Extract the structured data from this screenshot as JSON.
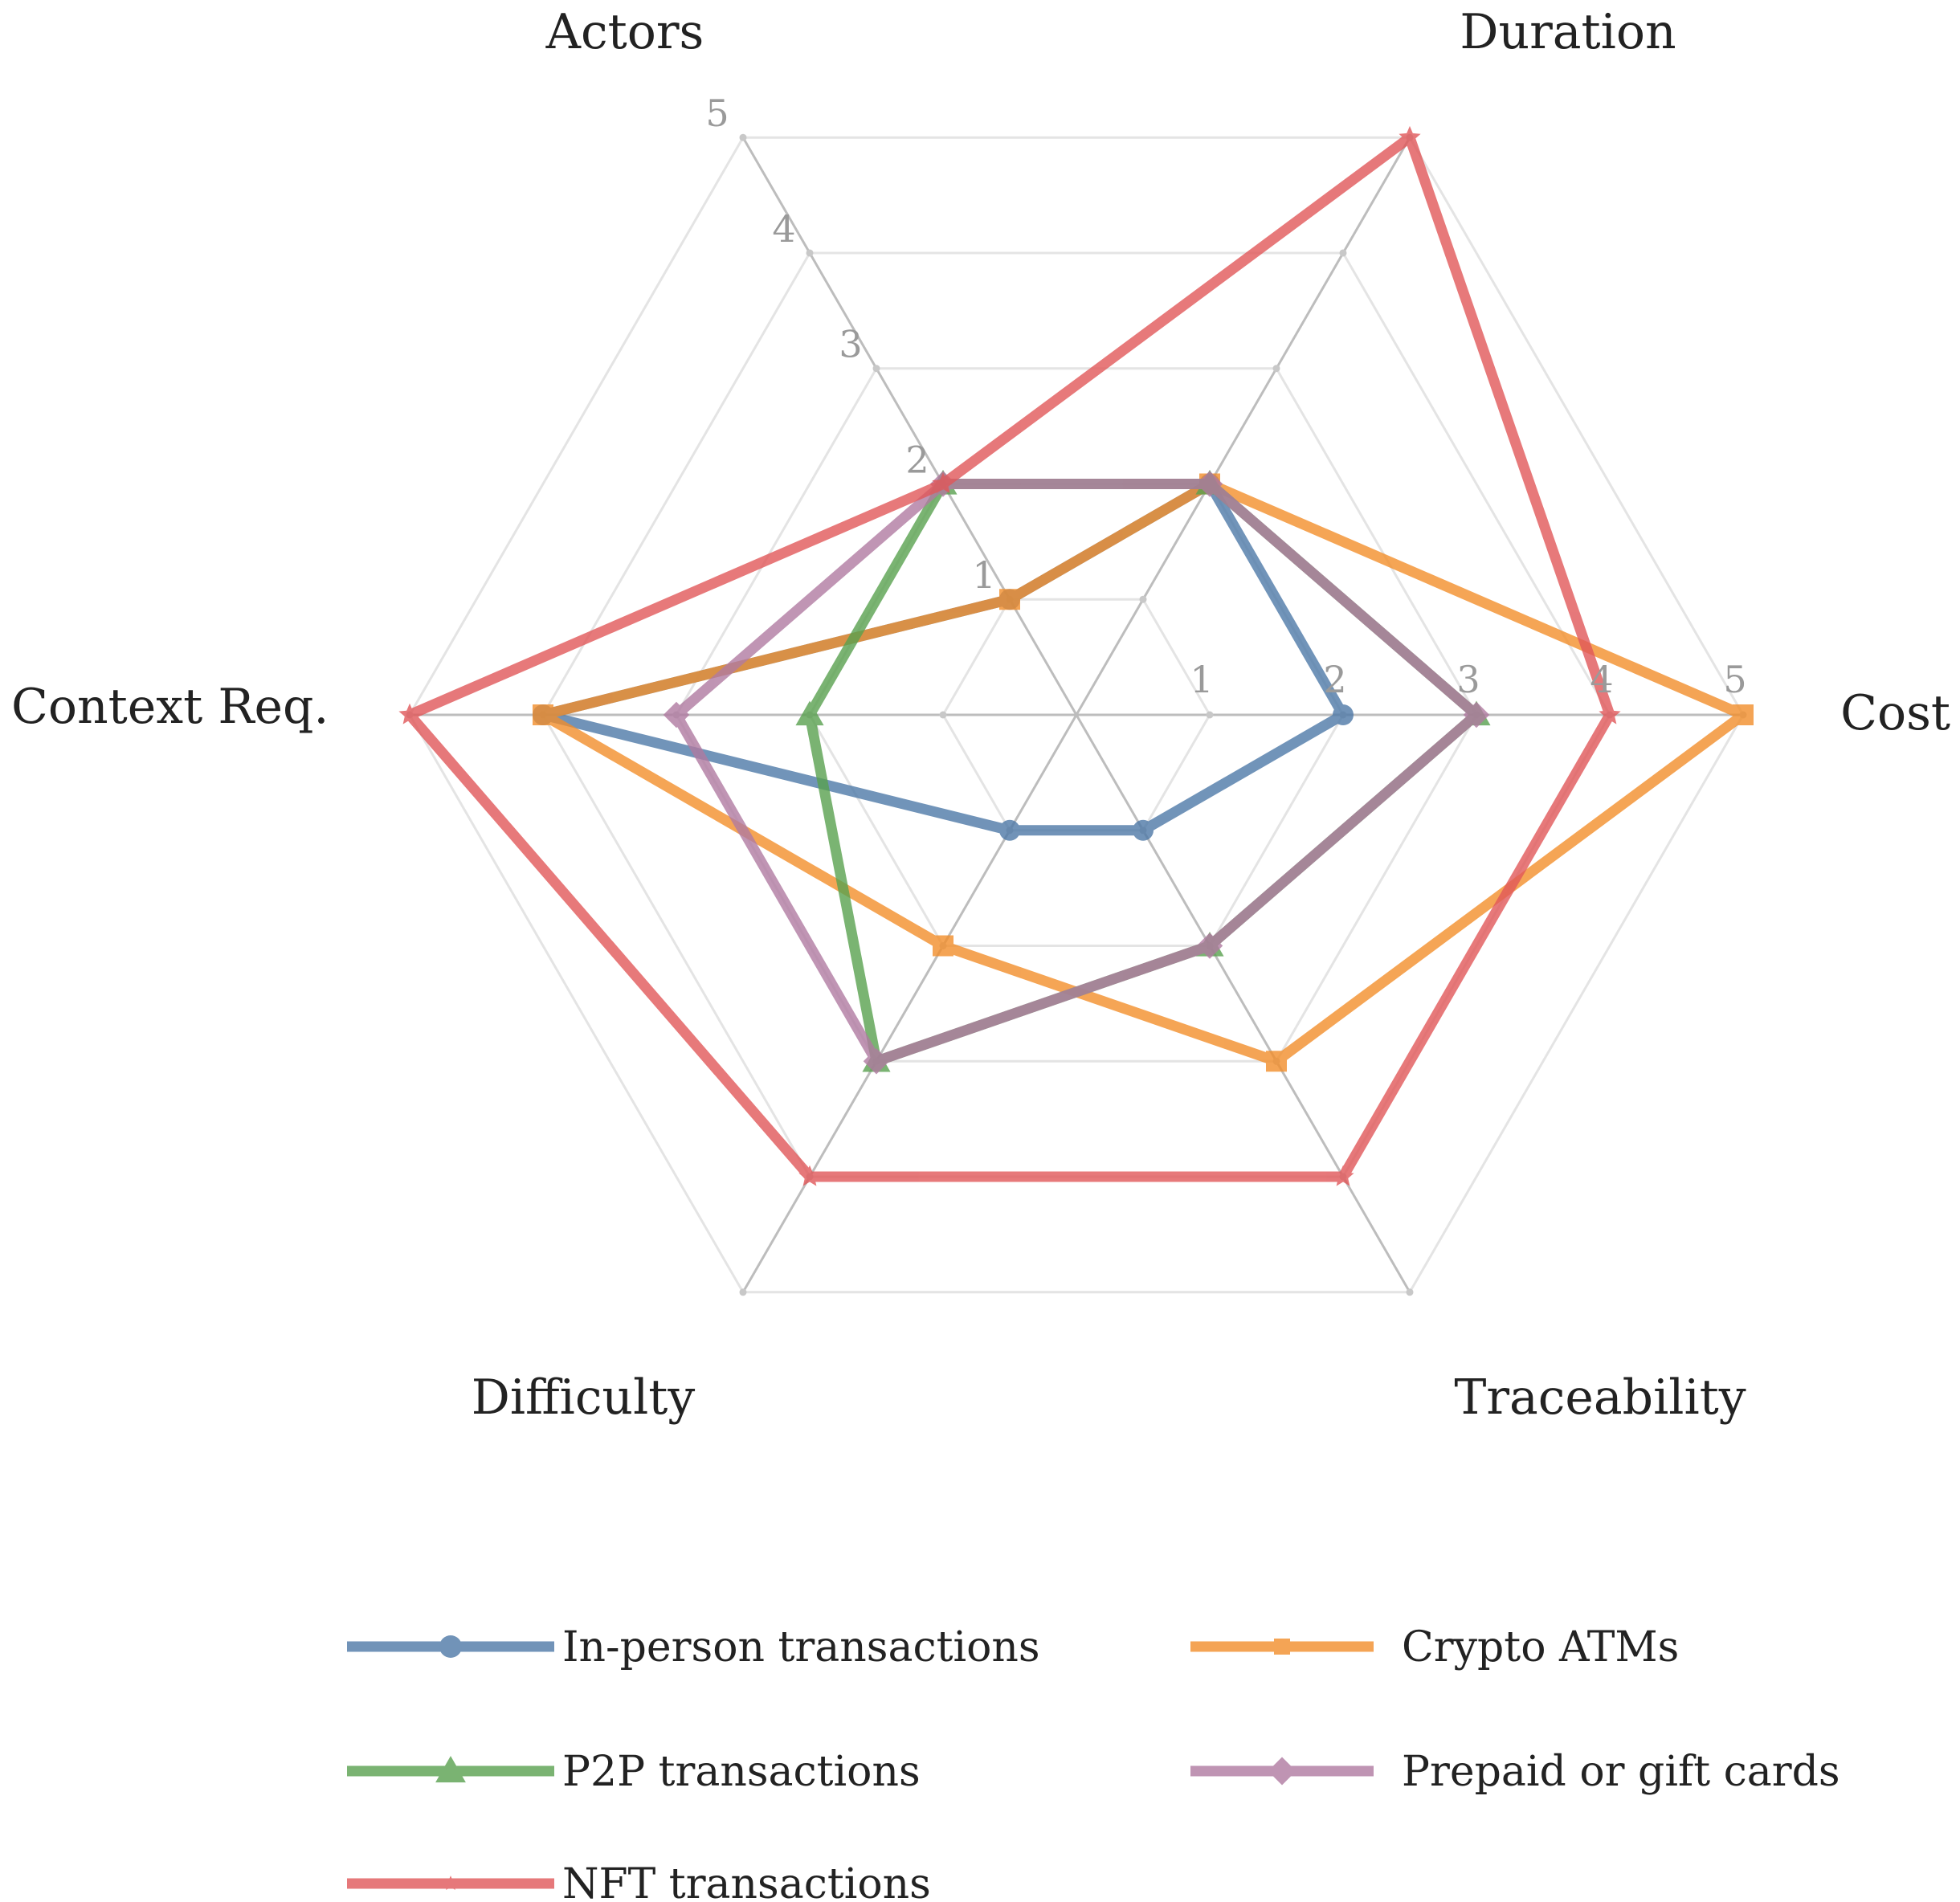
{
  "chart_data": {
    "type": "radar",
    "axes": [
      "Cost",
      "Duration",
      "Actors",
      "Context Req.",
      "Difficulty",
      "Traceability"
    ],
    "range": [
      0,
      5
    ],
    "ticks": [
      1,
      2,
      3,
      4,
      5
    ],
    "legend_position": "bottom",
    "series": [
      {
        "name": "In-person transactions",
        "color": "#4e79a7",
        "marker": "circle",
        "values": [
          2,
          2,
          1,
          4,
          1,
          1
        ]
      },
      {
        "name": "Crypto ATMs",
        "color": "#f28e2b",
        "marker": "square",
        "values": [
          5,
          2,
          1,
          4,
          2,
          3
        ]
      },
      {
        "name": "P2P transactions",
        "color": "#59a14f",
        "marker": "triangle",
        "values": [
          3,
          2,
          2,
          2,
          3,
          2
        ]
      },
      {
        "name": "Prepaid or gift cards",
        "color": "#b07aa1",
        "marker": "diamond",
        "values": [
          3,
          2,
          2,
          3,
          3,
          2
        ]
      },
      {
        "name": "NFT transactions",
        "color": "#e15759",
        "marker": "star",
        "values": [
          4,
          5,
          2,
          5,
          4,
          4
        ]
      }
    ]
  }
}
